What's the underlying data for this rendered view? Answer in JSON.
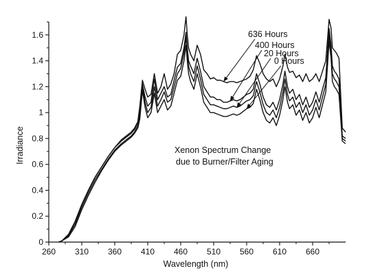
{
  "chart_data": {
    "type": "line",
    "title": "",
    "xlabel": "Wavelength (nm)",
    "ylabel": "Irradiance",
    "xlim": [
      260,
      710
    ],
    "ylim": [
      0,
      1.7
    ],
    "xticks": [
      260,
      310,
      360,
      410,
      460,
      510,
      560,
      610,
      660
    ],
    "yticks": [
      0,
      0.2,
      0.4,
      0.6,
      0.8,
      1,
      1.2,
      1.4,
      1.6
    ],
    "xtick_labels": [
      "260",
      "310",
      "360",
      "410",
      "460",
      "510",
      "560",
      "610",
      "660"
    ],
    "ytick_labels": [
      "0",
      "0.2",
      "0.4",
      "0.6",
      "0.8",
      "1",
      "1.2",
      "1.4",
      "1.6"
    ],
    "annotation": [
      "Xenon Spectrum Change",
      "due to Burner/Filter Aging"
    ],
    "grid": false,
    "series": [
      {
        "name": "636 Hours",
        "x": [
          275,
          280,
          290,
          300,
          310,
          320,
          330,
          340,
          350,
          360,
          370,
          380,
          385,
          390,
          395,
          398,
          402,
          406,
          410,
          415,
          420,
          425,
          430,
          435,
          440,
          445,
          450,
          455,
          460,
          465,
          468,
          470,
          472,
          475,
          480,
          485,
          490,
          495,
          500,
          505,
          510,
          515,
          520,
          525,
          530,
          535,
          540,
          545,
          550,
          555,
          560,
          565,
          570,
          575,
          580,
          585,
          590,
          595,
          600,
          605,
          610,
          615,
          618,
          622,
          625,
          630,
          635,
          640,
          645,
          650,
          655,
          660,
          665,
          670,
          675,
          680,
          685,
          688,
          690,
          693,
          696,
          700,
          705,
          710
        ],
        "y": [
          0,
          0.01,
          0.06,
          0.16,
          0.29,
          0.4,
          0.5,
          0.58,
          0.66,
          0.73,
          0.79,
          0.83,
          0.85,
          0.88,
          0.93,
          1.05,
          1.25,
          1.18,
          1.12,
          1.14,
          1.3,
          1.15,
          1.2,
          1.3,
          1.18,
          1.22,
          1.3,
          1.45,
          1.48,
          1.6,
          1.74,
          1.6,
          1.5,
          1.45,
          1.4,
          1.52,
          1.45,
          1.33,
          1.3,
          1.26,
          1.27,
          1.25,
          1.25,
          1.24,
          1.23,
          1.24,
          1.24,
          1.23,
          1.24,
          1.25,
          1.26,
          1.28,
          1.33,
          1.44,
          1.38,
          1.3,
          1.26,
          1.24,
          1.26,
          1.2,
          1.26,
          1.36,
          1.45,
          1.35,
          1.31,
          1.32,
          1.27,
          1.29,
          1.24,
          1.3,
          1.24,
          1.26,
          1.3,
          1.24,
          1.32,
          1.4,
          1.72,
          1.65,
          1.5,
          1.48,
          1.46,
          1.42,
          0.88,
          0.85
        ]
      },
      {
        "name": "400 Hours",
        "x": [
          275,
          280,
          290,
          300,
          310,
          320,
          330,
          340,
          350,
          360,
          370,
          380,
          385,
          390,
          395,
          398,
          402,
          406,
          410,
          415,
          420,
          425,
          430,
          435,
          440,
          445,
          450,
          455,
          460,
          465,
          468,
          470,
          472,
          475,
          480,
          485,
          490,
          495,
          500,
          505,
          510,
          515,
          520,
          525,
          530,
          535,
          540,
          545,
          550,
          555,
          560,
          565,
          570,
          575,
          580,
          585,
          590,
          595,
          600,
          605,
          610,
          615,
          618,
          622,
          625,
          630,
          635,
          640,
          645,
          650,
          655,
          660,
          665,
          670,
          675,
          680,
          685,
          688,
          690,
          693,
          696,
          700,
          705,
          710
        ],
        "y": [
          0,
          0.01,
          0.06,
          0.16,
          0.29,
          0.4,
          0.5,
          0.58,
          0.66,
          0.73,
          0.78,
          0.82,
          0.84,
          0.87,
          0.92,
          1.0,
          1.22,
          1.12,
          1.05,
          1.08,
          1.26,
          1.1,
          1.15,
          1.2,
          1.12,
          1.14,
          1.25,
          1.35,
          1.38,
          1.5,
          1.62,
          1.5,
          1.4,
          1.36,
          1.3,
          1.42,
          1.32,
          1.2,
          1.16,
          1.12,
          1.12,
          1.1,
          1.1,
          1.08,
          1.08,
          1.09,
          1.1,
          1.09,
          1.1,
          1.12,
          1.14,
          1.15,
          1.18,
          1.3,
          1.22,
          1.12,
          1.06,
          1.04,
          1.08,
          1.02,
          1.1,
          1.22,
          1.32,
          1.2,
          1.15,
          1.18,
          1.1,
          1.14,
          1.06,
          1.12,
          1.04,
          1.08,
          1.16,
          1.08,
          1.18,
          1.27,
          1.65,
          1.52,
          1.36,
          1.32,
          1.3,
          1.26,
          0.82,
          0.8
        ]
      },
      {
        "name": "20 Hours",
        "x": [
          275,
          280,
          290,
          300,
          310,
          320,
          330,
          340,
          350,
          360,
          370,
          380,
          385,
          390,
          395,
          398,
          402,
          406,
          410,
          415,
          420,
          425,
          430,
          435,
          440,
          445,
          450,
          455,
          460,
          465,
          468,
          470,
          472,
          475,
          480,
          485,
          490,
          495,
          500,
          505,
          510,
          515,
          520,
          525,
          530,
          535,
          540,
          545,
          550,
          555,
          560,
          565,
          570,
          575,
          580,
          585,
          590,
          595,
          600,
          605,
          610,
          615,
          618,
          622,
          625,
          630,
          635,
          640,
          645,
          650,
          655,
          660,
          665,
          670,
          675,
          680,
          685,
          688,
          690,
          693,
          696,
          700,
          705,
          710
        ],
        "y": [
          0,
          0.01,
          0.05,
          0.14,
          0.27,
          0.38,
          0.48,
          0.56,
          0.64,
          0.71,
          0.76,
          0.8,
          0.82,
          0.85,
          0.9,
          0.98,
          1.2,
          1.08,
          1.0,
          1.04,
          1.2,
          1.05,
          1.1,
          1.16,
          1.08,
          1.1,
          1.2,
          1.3,
          1.34,
          1.46,
          1.58,
          1.46,
          1.36,
          1.3,
          1.24,
          1.36,
          1.26,
          1.14,
          1.1,
          1.06,
          1.06,
          1.05,
          1.04,
          1.03,
          1.03,
          1.04,
          1.05,
          1.04,
          1.05,
          1.07,
          1.09,
          1.1,
          1.13,
          1.24,
          1.16,
          1.06,
          1.0,
          0.98,
          1.02,
          0.96,
          1.04,
          1.16,
          1.26,
          1.14,
          1.09,
          1.12,
          1.04,
          1.08,
          1.0,
          1.06,
          0.98,
          1.02,
          1.1,
          1.02,
          1.12,
          1.22,
          1.6,
          1.48,
          1.3,
          1.26,
          1.24,
          1.2,
          0.8,
          0.78
        ]
      },
      {
        "name": "0 Hours",
        "x": [
          275,
          280,
          290,
          300,
          310,
          320,
          330,
          340,
          350,
          360,
          370,
          380,
          385,
          390,
          395,
          398,
          402,
          406,
          410,
          415,
          420,
          425,
          430,
          435,
          440,
          445,
          450,
          455,
          460,
          465,
          468,
          470,
          472,
          475,
          480,
          485,
          490,
          495,
          500,
          505,
          510,
          515,
          520,
          525,
          530,
          535,
          540,
          545,
          550,
          555,
          560,
          565,
          570,
          575,
          580,
          585,
          590,
          595,
          600,
          605,
          610,
          615,
          618,
          622,
          625,
          630,
          635,
          640,
          645,
          650,
          655,
          660,
          665,
          670,
          675,
          680,
          685,
          688,
          690,
          693,
          696,
          700,
          705,
          710
        ],
        "y": [
          0,
          0.01,
          0.04,
          0.12,
          0.25,
          0.36,
          0.46,
          0.55,
          0.63,
          0.7,
          0.75,
          0.79,
          0.81,
          0.84,
          0.88,
          0.95,
          1.17,
          1.04,
          0.96,
          1.0,
          1.15,
          1.0,
          1.05,
          1.1,
          1.02,
          1.05,
          1.15,
          1.25,
          1.28,
          1.4,
          1.52,
          1.4,
          1.3,
          1.24,
          1.18,
          1.3,
          1.2,
          1.08,
          1.04,
          1.0,
          1.0,
          0.99,
          0.98,
          0.97,
          0.97,
          0.98,
          0.99,
          0.98,
          0.99,
          1.01,
          1.03,
          1.04,
          1.07,
          1.18,
          1.1,
          1.0,
          0.94,
          0.92,
          0.96,
          0.9,
          0.98,
          1.1,
          1.2,
          1.08,
          1.03,
          1.06,
          0.98,
          1.02,
          0.94,
          1.0,
          0.92,
          0.96,
          1.04,
          0.96,
          1.06,
          1.16,
          1.55,
          1.42,
          1.24,
          1.2,
          1.18,
          1.14,
          0.78,
          0.76
        ]
      }
    ],
    "legend_labels": [
      {
        "text": "636 Hours",
        "points_to_x": 525,
        "points_to_y": 1.24
      },
      {
        "text": "400 Hours",
        "points_to_x": 535,
        "points_to_y": 1.09
      },
      {
        "text": "20 Hours",
        "points_to_x": 545,
        "points_to_y": 1.04
      },
      {
        "text": "0 Hours",
        "points_to_x": 560,
        "points_to_y": 1.03
      }
    ]
  }
}
